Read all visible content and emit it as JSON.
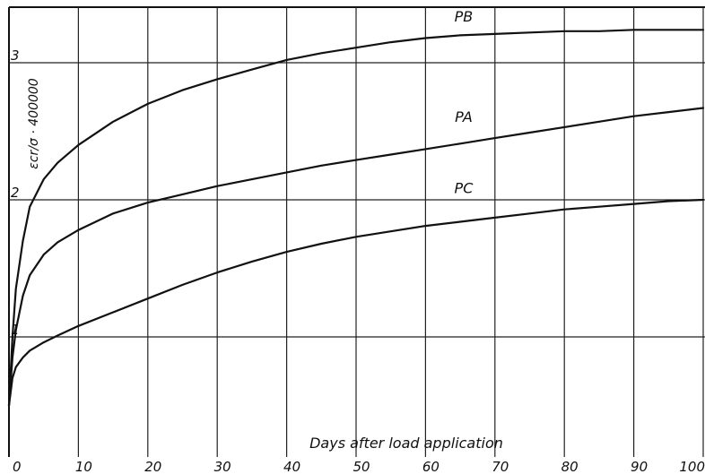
{
  "chart_data": {
    "type": "line",
    "title": "",
    "xlabel": "Days after load application",
    "ylabel": "εcr/σ · 400000",
    "xlim": [
      0,
      100
    ],
    "ylim": [
      0,
      3.4
    ],
    "x_ticks": [
      0,
      10,
      20,
      30,
      40,
      50,
      60,
      70,
      80,
      90,
      100
    ],
    "x_tick_labels": [
      "0",
      "10",
      "20",
      "30",
      "40",
      "50",
      "60",
      "70",
      "80",
      "90",
      "100"
    ],
    "y_ticks": [
      1,
      2,
      3
    ],
    "y_tick_labels": [
      "1",
      "2",
      "3"
    ],
    "grid": true,
    "series": [
      {
        "name": "PB",
        "x": [
          0,
          0.5,
          1,
          2,
          3,
          5,
          7,
          10,
          15,
          20,
          25,
          30,
          35,
          40,
          45,
          50,
          55,
          60,
          65,
          70,
          75,
          80,
          85,
          90,
          95,
          100
        ],
        "y": [
          0.5,
          1.0,
          1.35,
          1.7,
          1.95,
          2.15,
          2.27,
          2.4,
          2.57,
          2.7,
          2.8,
          2.88,
          2.95,
          3.02,
          3.07,
          3.11,
          3.15,
          3.18,
          3.2,
          3.21,
          3.22,
          3.23,
          3.23,
          3.24,
          3.24,
          3.24
        ]
      },
      {
        "name": "PA",
        "x": [
          0,
          0.5,
          1,
          2,
          3,
          5,
          7,
          10,
          15,
          20,
          25,
          30,
          35,
          40,
          45,
          50,
          55,
          60,
          65,
          70,
          75,
          80,
          85,
          90,
          95,
          100
        ],
        "y": [
          0.5,
          0.85,
          1.05,
          1.3,
          1.45,
          1.6,
          1.69,
          1.78,
          1.9,
          1.98,
          2.04,
          2.1,
          2.15,
          2.2,
          2.25,
          2.29,
          2.33,
          2.37,
          2.41,
          2.45,
          2.49,
          2.53,
          2.57,
          2.61,
          2.64,
          2.67
        ]
      },
      {
        "name": "PC",
        "x": [
          0,
          0.5,
          1,
          2,
          3,
          5,
          7,
          10,
          15,
          20,
          25,
          30,
          35,
          40,
          45,
          50,
          55,
          60,
          65,
          70,
          75,
          80,
          85,
          90,
          95,
          100
        ],
        "y": [
          0.5,
          0.7,
          0.78,
          0.85,
          0.9,
          0.96,
          1.01,
          1.08,
          1.18,
          1.28,
          1.38,
          1.47,
          1.55,
          1.62,
          1.68,
          1.73,
          1.77,
          1.81,
          1.84,
          1.87,
          1.9,
          1.93,
          1.95,
          1.97,
          1.99,
          2.0
        ]
      }
    ],
    "curve_labels": [
      {
        "text": "PB",
        "x": 65.5,
        "y": 3.3
      },
      {
        "text": "PA",
        "x": 65.5,
        "y": 2.57
      },
      {
        "text": "PC",
        "x": 65.5,
        "y": 2.05
      }
    ]
  }
}
